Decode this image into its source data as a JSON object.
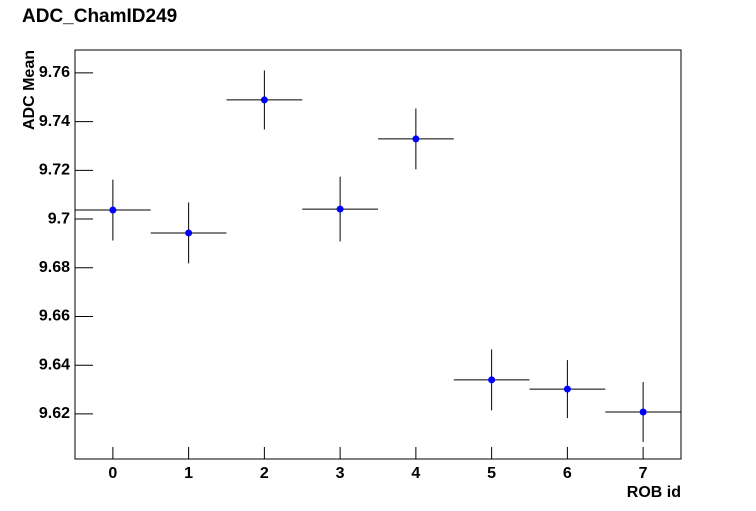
{
  "chart_data": {
    "type": "scatter",
    "title": "ADC_ChamID249",
    "x_label": "ROB id",
    "y_label": "ADC Mean",
    "x": [
      0,
      1,
      2,
      3,
      4,
      5,
      6,
      7
    ],
    "xerr": [
      0.5,
      0.5,
      0.5,
      0.5,
      0.5,
      0.5,
      0.5,
      0.5
    ],
    "values": [
      9.7037,
      9.6943,
      9.7489,
      9.7041,
      9.7329,
      9.634,
      9.6302,
      9.6208
    ],
    "yerr": [
      0.0125,
      0.0125,
      0.0121,
      0.0133,
      0.0125,
      0.0125,
      0.0119,
      0.0123
    ],
    "color": "#0000ff",
    "xlim": [
      -0.5,
      7.5
    ],
    "xticks": [
      0,
      1,
      2,
      3,
      4,
      5,
      6,
      7
    ],
    "ylim": [
      9.6015,
      9.7694
    ],
    "yticks": [
      9.62,
      9.64,
      9.66,
      9.68,
      9.7,
      9.72,
      9.74,
      9.76
    ]
  }
}
